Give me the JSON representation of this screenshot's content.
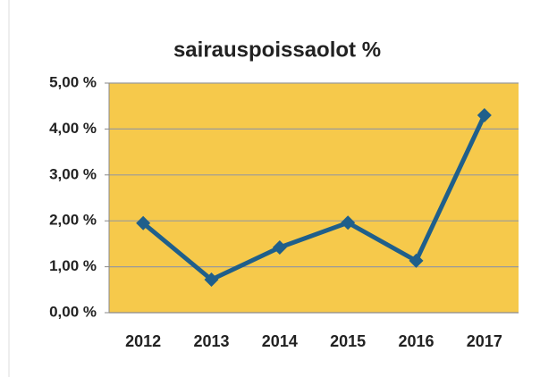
{
  "chart_data": {
    "type": "line",
    "title": "sairauspoissaolot  %",
    "categories": [
      "2012",
      "2013",
      "2014",
      "2015",
      "2016",
      "2017"
    ],
    "values": [
      1.95,
      0.72,
      1.42,
      1.96,
      1.13,
      4.3
    ],
    "color": "#1f5f8b",
    "background": "#f6c94b",
    "ylim": [
      0,
      5
    ],
    "yticks": [
      {
        "value": 0,
        "label": "0,00 %"
      },
      {
        "value": 1,
        "label": "1,00 %"
      },
      {
        "value": 2,
        "label": "2,00 %"
      },
      {
        "value": 3,
        "label": "3,00 %"
      },
      {
        "value": 4,
        "label": "4,00 %"
      },
      {
        "value": 5,
        "label": "5,00 %"
      }
    ],
    "grid": true
  }
}
